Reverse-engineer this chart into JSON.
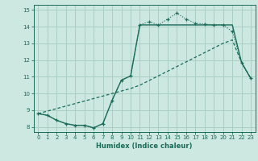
{
  "xlabel": "Humidex (Indice chaleur)",
  "xlim": [
    -0.5,
    23.5
  ],
  "ylim": [
    7.7,
    15.3
  ],
  "yticks": [
    8,
    9,
    10,
    11,
    12,
    13,
    14,
    15
  ],
  "xticks": [
    0,
    1,
    2,
    3,
    4,
    5,
    6,
    7,
    8,
    9,
    10,
    11,
    12,
    13,
    14,
    15,
    16,
    17,
    18,
    19,
    20,
    21,
    22,
    23
  ],
  "bg_color": "#cce8e0",
  "line_color": "#1a6b5a",
  "grid_color": "#aacfc4",
  "curve1_x": [
    0,
    1,
    2,
    3,
    4,
    5,
    6,
    7,
    8,
    9,
    10,
    11,
    12,
    13,
    14,
    15,
    16,
    17,
    18,
    19,
    20,
    21,
    22,
    23
  ],
  "curve1_y": [
    8.8,
    8.7,
    8.4,
    8.2,
    8.1,
    8.1,
    7.95,
    8.2,
    9.6,
    10.8,
    11.05,
    14.1,
    14.3,
    14.1,
    14.45,
    14.8,
    14.45,
    14.2,
    14.15,
    14.1,
    14.1,
    13.7,
    11.85,
    10.9
  ],
  "curve2_x": [
    0,
    1,
    2,
    3,
    4,
    5,
    6,
    7,
    8,
    9,
    10,
    11,
    20,
    21,
    22,
    23
  ],
  "curve2_y": [
    8.8,
    8.7,
    8.4,
    8.2,
    8.1,
    8.1,
    7.95,
    8.2,
    9.6,
    10.8,
    11.05,
    14.1,
    14.1,
    14.1,
    11.85,
    10.9
  ],
  "curve3_x": [
    0,
    10,
    11,
    20,
    21,
    22,
    23
  ],
  "curve3_y": [
    8.8,
    10.3,
    10.5,
    13.0,
    13.2,
    11.85,
    10.9
  ]
}
